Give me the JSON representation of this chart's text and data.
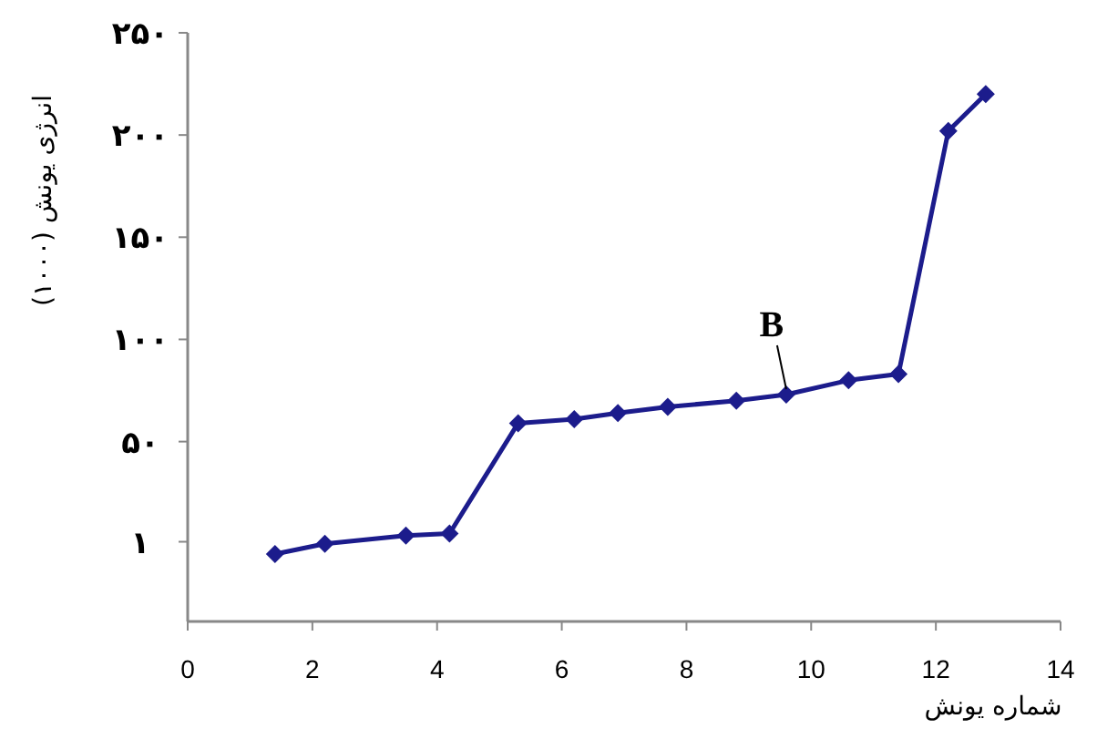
{
  "chart_data": {
    "type": "line",
    "xlabel": "شماره یونش",
    "ylabel": "انرژی یونش (۱۰۰۰)",
    "x": [
      1.4,
      2.2,
      3.5,
      4.2,
      5.3,
      6.2,
      6.9,
      7.7,
      8.8,
      9.6,
      10.6,
      11.4,
      12.2,
      12.8
    ],
    "series": [
      {
        "color": "#1c1c8c",
        "values": [
          -5,
          0,
          4,
          5,
          59,
          61,
          64,
          67,
          70,
          73,
          80,
          83,
          202,
          220
        ]
      }
    ],
    "xlim": [
      0,
      14
    ],
    "xticks": [
      0,
      2,
      4,
      6,
      8,
      10,
      12,
      14
    ],
    "ylim": [
      -38,
      250
    ],
    "yticks": [
      {
        "value": 1,
        "label": "۱"
      },
      {
        "value": 50,
        "label": "۵۰"
      },
      {
        "value": 100,
        "label": "۱۰۰"
      },
      {
        "value": 150,
        "label": "۱۵۰"
      },
      {
        "value": 200,
        "label": "۲۰۰"
      },
      {
        "value": 250,
        "label": "۲۵۰"
      }
    ],
    "marker": "diamond",
    "line_style": "solid",
    "grid": false,
    "annotations": [
      {
        "text": "B",
        "x": 9.6,
        "y": 73
      }
    ]
  }
}
